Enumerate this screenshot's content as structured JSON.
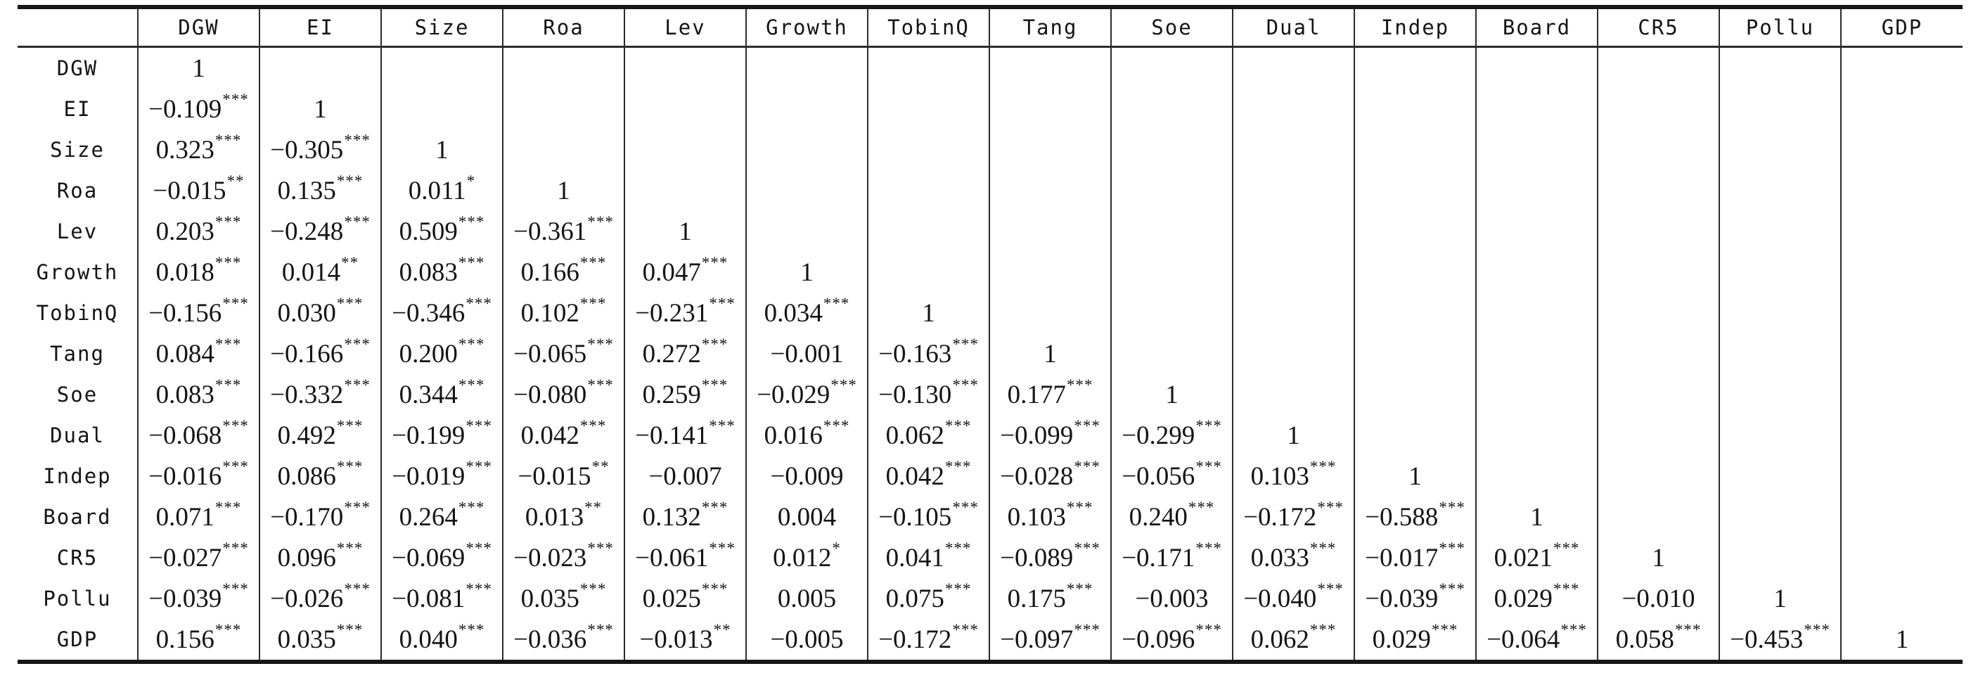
{
  "table": {
    "corner_label": "",
    "columns": [
      "DGW",
      "EI",
      "Size",
      "Roa",
      "Lev",
      "Growth",
      "TobinQ",
      "Tang",
      "Soe",
      "Dual",
      "Indep",
      "Board",
      "CR5",
      "Pollu",
      "GDP"
    ],
    "rows": [
      {
        "label": "DGW",
        "cells": [
          "1",
          "",
          "",
          "",
          "",
          "",
          "",
          "",
          "",
          "",
          "",
          "",
          "",
          "",
          ""
        ]
      },
      {
        "label": "EI",
        "cells": [
          "−0.109***",
          "1",
          "",
          "",
          "",
          "",
          "",
          "",
          "",
          "",
          "",
          "",
          "",
          "",
          ""
        ]
      },
      {
        "label": "Size",
        "cells": [
          "0.323***",
          "−0.305***",
          "1",
          "",
          "",
          "",
          "",
          "",
          "",
          "",
          "",
          "",
          "",
          "",
          ""
        ]
      },
      {
        "label": "Roa",
        "cells": [
          "−0.015**",
          "0.135***",
          "0.011*",
          "1",
          "",
          "",
          "",
          "",
          "",
          "",
          "",
          "",
          "",
          "",
          ""
        ]
      },
      {
        "label": "Lev",
        "cells": [
          "0.203***",
          "−0.248***",
          "0.509***",
          "−0.361***",
          "1",
          "",
          "",
          "",
          "",
          "",
          "",
          "",
          "",
          "",
          ""
        ]
      },
      {
        "label": "Growth",
        "cells": [
          "0.018***",
          "0.014**",
          "0.083***",
          "0.166***",
          "0.047***",
          "1",
          "",
          "",
          "",
          "",
          "",
          "",
          "",
          "",
          ""
        ]
      },
      {
        "label": "TobinQ",
        "cells": [
          "−0.156***",
          "0.030***",
          "−0.346***",
          "0.102***",
          "−0.231***",
          "0.034***",
          "1",
          "",
          "",
          "",
          "",
          "",
          "",
          "",
          ""
        ]
      },
      {
        "label": "Tang",
        "cells": [
          "0.084***",
          "−0.166***",
          "0.200***",
          "−0.065***",
          "0.272***",
          "−0.001",
          "−0.163***",
          "1",
          "",
          "",
          "",
          "",
          "",
          "",
          ""
        ]
      },
      {
        "label": "Soe",
        "cells": [
          "0.083***",
          "−0.332***",
          "0.344***",
          "−0.080***",
          "0.259***",
          "−0.029***",
          "−0.130***",
          "0.177***",
          "1",
          "",
          "",
          "",
          "",
          "",
          ""
        ]
      },
      {
        "label": "Dual",
        "cells": [
          "−0.068***",
          "0.492***",
          "−0.199***",
          "0.042***",
          "−0.141***",
          "0.016***",
          "0.062***",
          "−0.099***",
          "−0.299***",
          "1",
          "",
          "",
          "",
          "",
          ""
        ]
      },
      {
        "label": "Indep",
        "cells": [
          "−0.016***",
          "0.086***",
          "−0.019***",
          "−0.015**",
          "−0.007",
          "−0.009",
          "0.042***",
          "−0.028***",
          "−0.056***",
          "0.103***",
          "1",
          "",
          "",
          "",
          ""
        ]
      },
      {
        "label": "Board",
        "cells": [
          "0.071***",
          "−0.170***",
          "0.264***",
          "0.013**",
          "0.132***",
          "0.004",
          "−0.105***",
          "0.103***",
          "0.240***",
          "−0.172***",
          "−0.588***",
          "1",
          "",
          "",
          ""
        ]
      },
      {
        "label": "CR5",
        "cells": [
          "−0.027***",
          "0.096***",
          "−0.069***",
          "−0.023***",
          "−0.061***",
          "0.012*",
          "0.041***",
          "−0.089***",
          "−0.171***",
          "0.033***",
          "−0.017***",
          "0.021***",
          "1",
          "",
          ""
        ]
      },
      {
        "label": "Pollu",
        "cells": [
          "−0.039***",
          "−0.026***",
          "−0.081***",
          "0.035***",
          "0.025***",
          "0.005",
          "0.075***",
          "0.175***",
          "−0.003",
          "−0.040***",
          "−0.039***",
          "0.029***",
          "−0.010",
          "1",
          ""
        ]
      },
      {
        "label": "GDP",
        "cells": [
          "0.156***",
          "0.035***",
          "0.040***",
          "−0.036***",
          "−0.013**",
          "−0.005",
          "−0.172***",
          "−0.097***",
          "−0.096***",
          "0.062***",
          "0.029***",
          "−0.064***",
          "0.058***",
          "−0.453***",
          "1"
        ]
      }
    ]
  },
  "chart_data": {
    "type": "table",
    "title": "Correlation matrix with significance stars",
    "variables": [
      "DGW",
      "EI",
      "Size",
      "Roa",
      "Lev",
      "Growth",
      "TobinQ",
      "Tang",
      "Soe",
      "Dual",
      "Indep",
      "Board",
      "CR5",
      "Pollu",
      "GDP"
    ],
    "lower_triangular_values": [
      [
        1
      ],
      [
        -0.109,
        1
      ],
      [
        0.323,
        -0.305,
        1
      ],
      [
        -0.015,
        0.135,
        0.011,
        1
      ],
      [
        0.203,
        -0.248,
        0.509,
        -0.361,
        1
      ],
      [
        0.018,
        0.014,
        0.083,
        0.166,
        0.047,
        1
      ],
      [
        -0.156,
        0.03,
        -0.346,
        0.102,
        -0.231,
        0.034,
        1
      ],
      [
        0.084,
        -0.166,
        0.2,
        -0.065,
        0.272,
        -0.001,
        -0.163,
        1
      ],
      [
        0.083,
        -0.332,
        0.344,
        -0.08,
        0.259,
        -0.029,
        -0.13,
        0.177,
        1
      ],
      [
        -0.068,
        0.492,
        -0.199,
        0.042,
        -0.141,
        0.016,
        0.062,
        -0.099,
        -0.299,
        1
      ],
      [
        -0.016,
        0.086,
        -0.019,
        -0.015,
        -0.007,
        -0.009,
        0.042,
        -0.028,
        -0.056,
        0.103,
        1
      ],
      [
        0.071,
        -0.17,
        0.264,
        0.013,
        0.132,
        0.004,
        -0.105,
        0.103,
        0.24,
        -0.172,
        -0.588,
        1
      ],
      [
        -0.027,
        0.096,
        -0.069,
        -0.023,
        -0.061,
        0.012,
        0.041,
        -0.089,
        -0.171,
        0.033,
        -0.017,
        0.021,
        1
      ],
      [
        -0.039,
        -0.026,
        -0.081,
        0.035,
        0.025,
        0.005,
        0.075,
        0.175,
        -0.003,
        -0.04,
        -0.039,
        0.029,
        -0.01,
        1
      ],
      [
        0.156,
        0.035,
        0.04,
        -0.036,
        -0.013,
        -0.005,
        -0.172,
        -0.097,
        -0.096,
        0.062,
        0.029,
        -0.064,
        0.058,
        -0.453,
        1
      ]
    ],
    "lower_triangular_stars": [
      [
        ""
      ],
      [
        "***",
        ""
      ],
      [
        "***",
        "***",
        ""
      ],
      [
        "**",
        "***",
        "*",
        ""
      ],
      [
        "***",
        "***",
        "***",
        "***",
        ""
      ],
      [
        "***",
        "**",
        "***",
        "***",
        "***",
        ""
      ],
      [
        "***",
        "***",
        "***",
        "***",
        "***",
        "***",
        ""
      ],
      [
        "***",
        "***",
        "***",
        "***",
        "***",
        "",
        "***",
        ""
      ],
      [
        "***",
        "***",
        "***",
        "***",
        "***",
        "***",
        "***",
        "***",
        ""
      ],
      [
        "***",
        "***",
        "***",
        "***",
        "***",
        "***",
        "***",
        "***",
        "***",
        ""
      ],
      [
        "***",
        "***",
        "***",
        "**",
        "",
        "",
        "***",
        "***",
        "***",
        "***",
        ""
      ],
      [
        "***",
        "***",
        "***",
        "**",
        "***",
        "",
        "***",
        "***",
        "***",
        "***",
        "***",
        ""
      ],
      [
        "***",
        "***",
        "***",
        "***",
        "***",
        "*",
        "***",
        "***",
        "***",
        "***",
        "***",
        "***",
        ""
      ],
      [
        "***",
        "***",
        "***",
        "***",
        "***",
        "",
        "***",
        "***",
        "",
        "***",
        "***",
        "***",
        "",
        ""
      ],
      [
        "***",
        "***",
        "***",
        "***",
        "**",
        "",
        "***",
        "***",
        "***",
        "***",
        "***",
        "***",
        "***",
        "***",
        ""
      ]
    ]
  }
}
